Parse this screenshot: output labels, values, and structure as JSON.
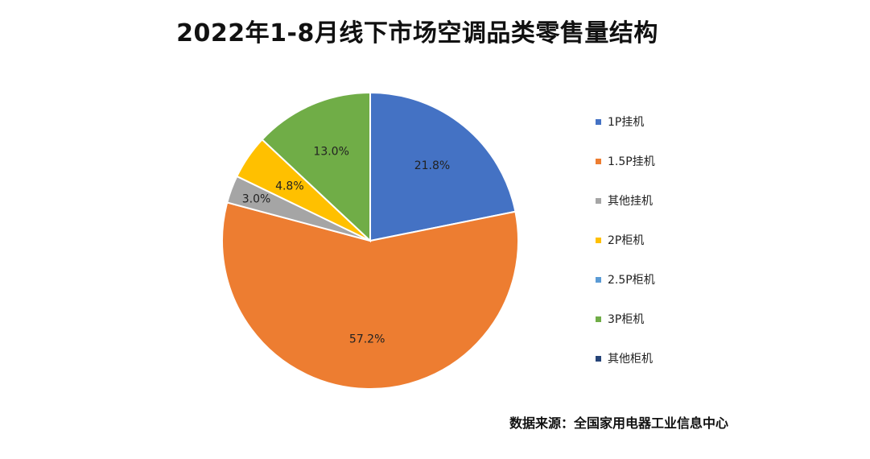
{
  "chart_data": {
    "type": "pie",
    "title": "2022年1-8月线下市场空调品类零售量结构",
    "categories": [
      "1P挂机",
      "1.5P挂机",
      "其他挂机",
      "2P柜机",
      "2.5P柜机",
      "3P柜机",
      "其他柜机"
    ],
    "values": [
      21.8,
      57.2,
      3.0,
      4.8,
      0.0,
      13.0,
      0.0
    ],
    "data_labels": [
      "21.8%",
      "57.2%",
      "3.0%",
      "4.8%",
      "",
      "13.0%",
      ""
    ],
    "colors": [
      "#4472C4",
      "#ED7D31",
      "#A5A5A5",
      "#FFC000",
      "#5B9BD5",
      "#70AD47",
      "#264478"
    ],
    "legend_position": "right",
    "start_angle": "12 o'clock",
    "direction": "clockwise"
  },
  "source_text": "数据来源：全国家用电器工业信息中心"
}
